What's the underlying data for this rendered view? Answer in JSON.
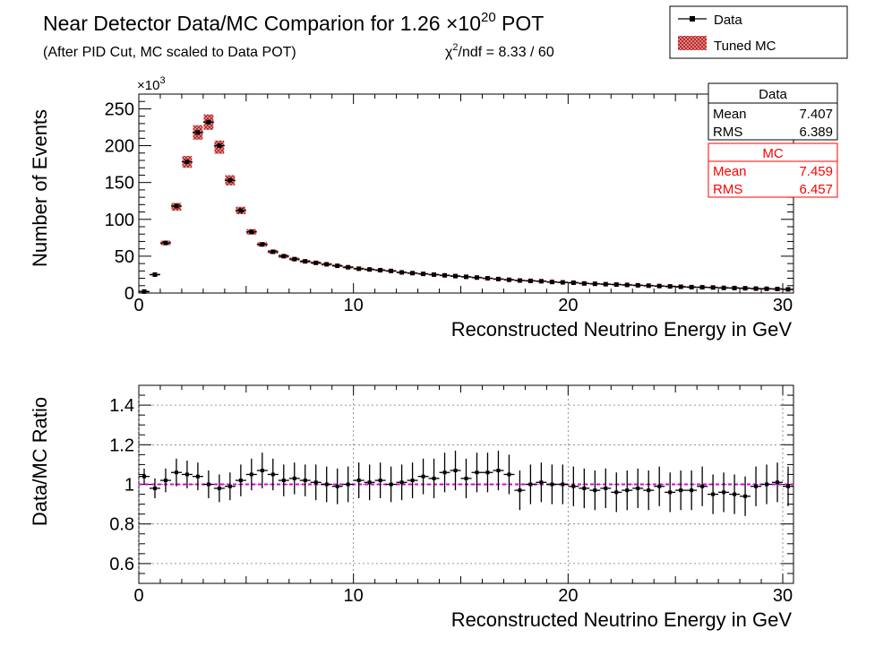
{
  "header": {
    "title_main": "Near Detector Data/MC Comparion for 1.26 ",
    "title_times": "×10",
    "title_exp": "20",
    "title_tail": " POT",
    "subtitle": "(After PID Cut, MC scaled to Data POT)",
    "chi2_chi": "χ",
    "chi2_exp": "2",
    "chi2_rest": "/ndf = 8.33 / 60"
  },
  "legend": {
    "data_label": "Data",
    "mc_label": "Tuned MC"
  },
  "stats": {
    "data": {
      "title": "Data",
      "mean_label": "Mean",
      "mean": "7.407",
      "rms_label": "RMS",
      "rms": "6.389"
    },
    "mc": {
      "title": "MC",
      "mean_label": "Mean",
      "mean": "7.459",
      "rms_label": "RMS",
      "rms": "6.457"
    }
  },
  "colors": {
    "mc_fill": "#c83232",
    "ratio_line": "#e000e0",
    "stats_mc": "#ff0000",
    "data": "#000000"
  },
  "chart_data": [
    {
      "type": "bar",
      "xlabel": "Reconstructed Neutrino Energy in GeV",
      "ylabel": "Number of Events",
      "multiplier": "×10",
      "multiplier_exp": "3",
      "xlim": [
        0,
        30.5
      ],
      "ylim": [
        0,
        270
      ],
      "xticks": [
        0,
        10,
        20,
        30
      ],
      "yticks": [
        0,
        50,
        100,
        150,
        200,
        250
      ],
      "grid": false,
      "legend_position": "top-right",
      "bin_width": 0.5,
      "x": [
        0.25,
        0.75,
        1.25,
        1.75,
        2.25,
        2.75,
        3.25,
        3.75,
        4.25,
        4.75,
        5.25,
        5.75,
        6.25,
        6.75,
        7.25,
        7.75,
        8.25,
        8.75,
        9.25,
        9.75,
        10.25,
        10.75,
        11.25,
        11.75,
        12.25,
        12.75,
        13.25,
        13.75,
        14.25,
        14.75,
        15.25,
        15.75,
        16.25,
        16.75,
        17.25,
        17.75,
        18.25,
        18.75,
        19.25,
        19.75,
        20.25,
        20.75,
        21.25,
        21.75,
        22.25,
        22.75,
        23.25,
        23.75,
        24.25,
        24.75,
        25.25,
        25.75,
        26.25,
        26.75,
        27.25,
        27.75,
        28.25,
        28.75,
        29.25,
        29.75,
        30.25
      ],
      "series": [
        {
          "name": "Data",
          "values": [
            2,
            25,
            68,
            118,
            178,
            218,
            232,
            200,
            153,
            112,
            83,
            66,
            56,
            50,
            46,
            43,
            41,
            39,
            37,
            35,
            33,
            32,
            31,
            30,
            28,
            27,
            26,
            25,
            24,
            23,
            22,
            21,
            20,
            19,
            18,
            17,
            16.5,
            16,
            15,
            14.5,
            14,
            13,
            12.5,
            12,
            11.5,
            11,
            10.5,
            10,
            9.5,
            9,
            8.5,
            8,
            7.8,
            7.5,
            7,
            6.8,
            6.5,
            6,
            5.8,
            5.5,
            5
          ]
        },
        {
          "name": "Tuned MC",
          "values": [
            2,
            25,
            68,
            117,
            178,
            218,
            232,
            198,
            153,
            112,
            83,
            66,
            56,
            50,
            46,
            43,
            41,
            39,
            37,
            35,
            33,
            32,
            31,
            30,
            28,
            27,
            26,
            25,
            24,
            23,
            22,
            21,
            20,
            19,
            18,
            17,
            16.5,
            16,
            15,
            14.5,
            14,
            13,
            12.5,
            12,
            11.5,
            11,
            10.5,
            10,
            9.5,
            9,
            8.5,
            8,
            7.8,
            7.5,
            7,
            6.8,
            6.5,
            6,
            5.8,
            5.5,
            5
          ]
        }
      ]
    },
    {
      "type": "scatter",
      "xlabel": "Reconstructed Neutrino Energy in GeV",
      "ylabel": "Data/MC Ratio",
      "xlim": [
        0,
        30.5
      ],
      "ylim": [
        0.5,
        1.5
      ],
      "xticks": [
        0,
        10,
        20,
        30
      ],
      "yticks": [
        0.6,
        0.8,
        1.0,
        1.2,
        1.4
      ],
      "ytick_labels": [
        "0.6",
        "0.8",
        "1",
        "1.2",
        "1.4"
      ],
      "grid": true,
      "reference_line": 1.0,
      "x": [
        0.25,
        0.75,
        1.25,
        1.75,
        2.25,
        2.75,
        3.25,
        3.75,
        4.25,
        4.75,
        5.25,
        5.75,
        6.25,
        6.75,
        7.25,
        7.75,
        8.25,
        8.75,
        9.25,
        9.75,
        10.25,
        10.75,
        11.25,
        11.75,
        12.25,
        12.75,
        13.25,
        13.75,
        14.25,
        14.75,
        15.25,
        15.75,
        16.25,
        16.75,
        17.25,
        17.75,
        18.25,
        18.75,
        19.25,
        19.75,
        20.25,
        20.75,
        21.25,
        21.75,
        22.25,
        22.75,
        23.25,
        23.75,
        24.25,
        24.75,
        25.25,
        25.75,
        26.25,
        26.75,
        27.25,
        27.75,
        28.25,
        28.75,
        29.25,
        29.75,
        30.25
      ],
      "values": [
        1.04,
        0.98,
        1.02,
        1.06,
        1.05,
        1.04,
        1.0,
        0.98,
        0.99,
        1.02,
        1.05,
        1.07,
        1.05,
        1.02,
        1.03,
        1.02,
        1.01,
        1.0,
        0.99,
        1.0,
        1.02,
        1.01,
        1.02,
        1.0,
        1.01,
        1.02,
        1.04,
        1.03,
        1.06,
        1.07,
        1.03,
        1.06,
        1.06,
        1.07,
        1.05,
        0.97,
        1.0,
        1.01,
        1.0,
        1.0,
        0.99,
        0.98,
        0.97,
        0.98,
        0.96,
        0.97,
        0.98,
        0.97,
        0.99,
        0.96,
        0.97,
        0.97,
        0.99,
        0.95,
        0.96,
        0.95,
        0.94,
        0.99,
        1.0,
        1.01,
        0.99
      ],
      "errors": [
        0.04,
        0.05,
        0.06,
        0.07,
        0.07,
        0.07,
        0.07,
        0.07,
        0.07,
        0.08,
        0.08,
        0.09,
        0.08,
        0.08,
        0.08,
        0.08,
        0.09,
        0.09,
        0.09,
        0.09,
        0.09,
        0.09,
        0.09,
        0.09,
        0.09,
        0.09,
        0.09,
        0.1,
        0.1,
        0.1,
        0.1,
        0.1,
        0.1,
        0.1,
        0.1,
        0.1,
        0.1,
        0.1,
        0.1,
        0.1,
        0.1,
        0.1,
        0.1,
        0.1,
        0.1,
        0.1,
        0.1,
        0.1,
        0.1,
        0.1,
        0.1,
        0.1,
        0.1,
        0.1,
        0.1,
        0.1,
        0.1,
        0.1,
        0.1,
        0.1,
        0.1
      ]
    }
  ]
}
